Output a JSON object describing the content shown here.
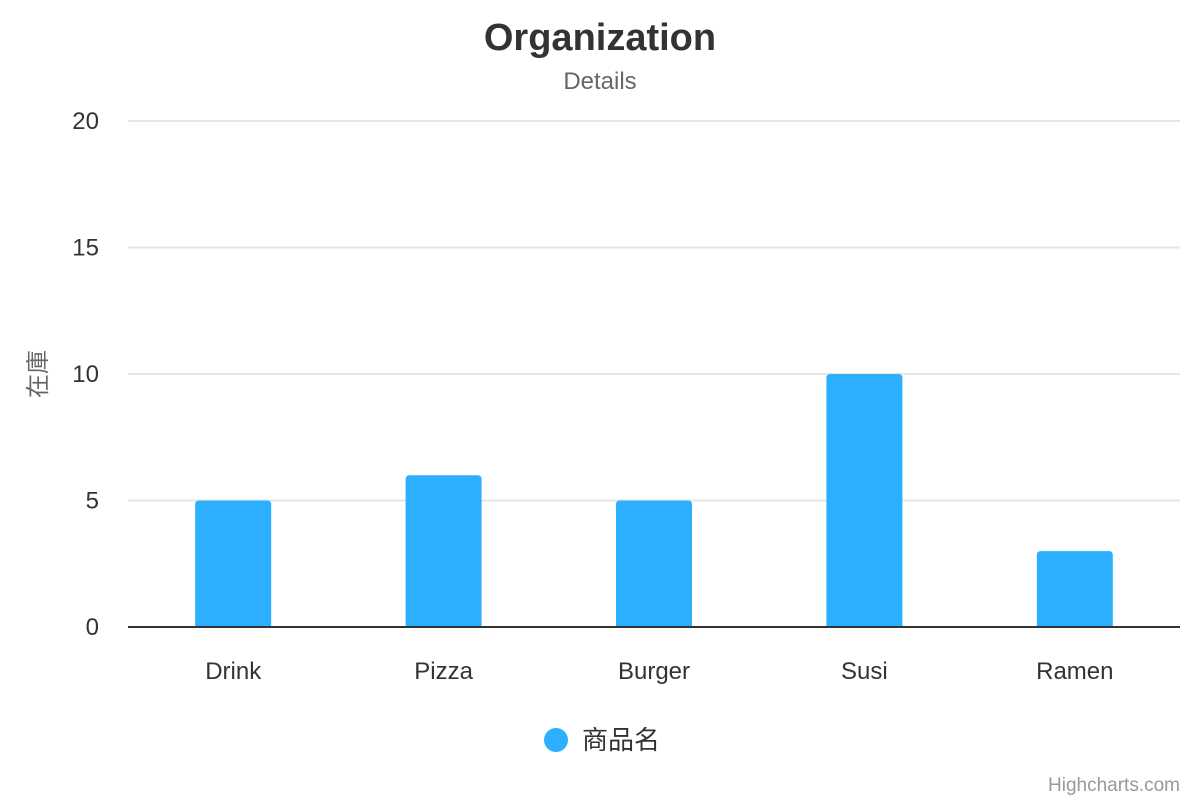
{
  "chart_data": {
    "type": "bar",
    "title": "Organization",
    "subtitle": "Details",
    "xlabel": "",
    "ylabel": "在庫",
    "categories": [
      "Drink",
      "Pizza",
      "Burger",
      "Susi",
      "Ramen"
    ],
    "series": [
      {
        "name": "商品名",
        "values": [
          5,
          6,
          5,
          10,
          3
        ],
        "color": "#2caffe"
      }
    ],
    "ylim": [
      0,
      20
    ],
    "yticks": [
      0,
      5,
      10,
      15,
      20
    ],
    "grid": true,
    "legend": "bottom-center",
    "credits": "Highcharts.com"
  }
}
